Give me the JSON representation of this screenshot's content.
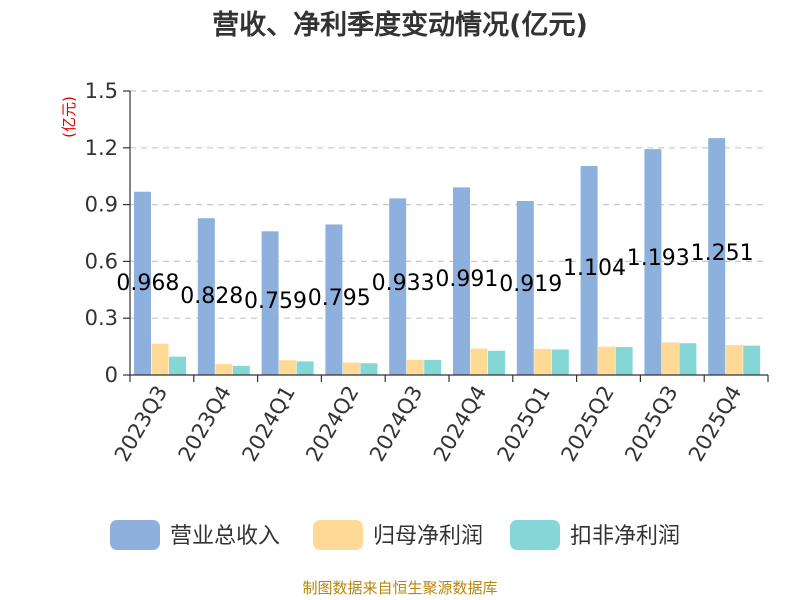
{
  "chart_data": {
    "type": "bar",
    "title": "营收、净利季度变动情况(亿元)",
    "ylabel": "(亿元)",
    "ylim": [
      0,
      1.5
    ],
    "yticks": [
      "0",
      "0.3",
      "0.6",
      "0.9",
      "1.2",
      "1.5"
    ],
    "categories": [
      "2023Q3",
      "2023Q4",
      "2024Q1",
      "2024Q2",
      "2024Q3",
      "2024Q4",
      "2025Q1",
      "2025Q2",
      "2025Q3",
      "2025Q4"
    ],
    "series": [
      {
        "name": "营业总收入",
        "color": "#8eb0dd",
        "values": [
          0.968,
          0.828,
          0.759,
          0.795,
          0.933,
          0.991,
          0.919,
          1.104,
          1.193,
          1.251
        ]
      },
      {
        "name": "归母净利润",
        "color": "#ffd996",
        "values": [
          0.165,
          0.058,
          0.078,
          0.066,
          0.08,
          0.14,
          0.138,
          0.15,
          0.172,
          0.158
        ]
      },
      {
        "name": "扣非净利润",
        "color": "#85d6d6",
        "values": [
          0.097,
          0.048,
          0.072,
          0.062,
          0.08,
          0.128,
          0.135,
          0.148,
          0.168,
          0.155
        ]
      }
    ],
    "data_labels": [
      "0.968",
      "0.828",
      "0.759",
      "0.795",
      "0.933",
      "0.991",
      "0.919",
      "1.104",
      "1.193",
      "1.251"
    ],
    "grid": true,
    "legend_position": "bottom"
  },
  "source": "制图数据来自恒生聚源数据库"
}
